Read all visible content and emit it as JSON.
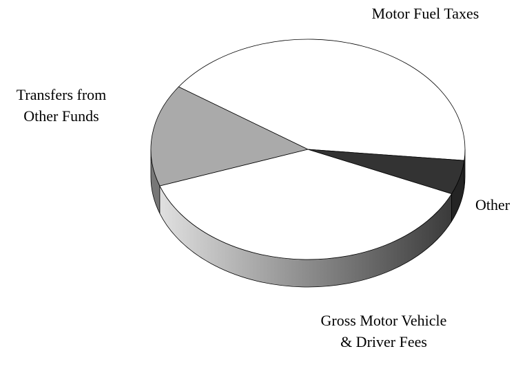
{
  "chart_data": {
    "type": "pie",
    "categories": [
      "Motor Fuel Taxes",
      "Transfers from Other Funds",
      "Gross Motor Vehicle & Driver Fees",
      "Other"
    ],
    "values": [
      42,
      15,
      38,
      5
    ],
    "colors": [
      "#ffffff",
      "#aaaaaa",
      "#ffffff",
      "#333333"
    ]
  }
}
